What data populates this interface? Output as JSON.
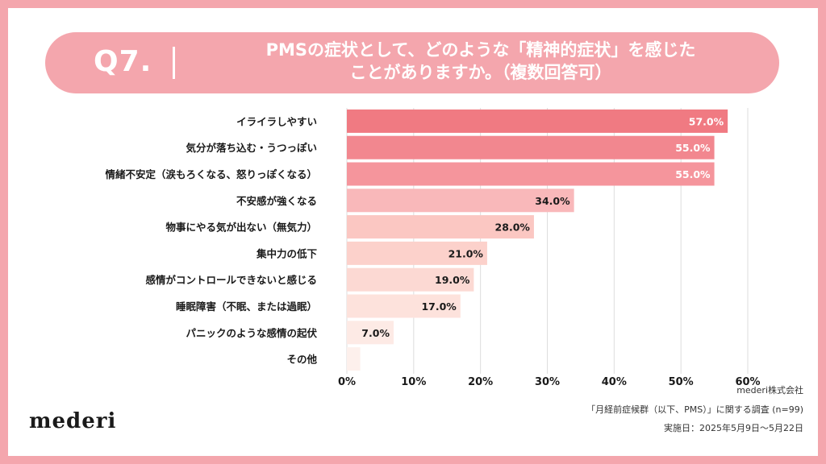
{
  "header": {
    "question_no": "Q7.",
    "question_line1": "PMSの症状として、どのような「精神的症状」を感じた",
    "question_line2": "ことがありますか。（複数回答可）"
  },
  "chart_data": {
    "type": "bar",
    "orientation": "horizontal",
    "categories": [
      "イライラしやすい",
      "気分が落ち込む・うつっぽい",
      "情緒不安定（涙もろくなる、怒りっぽくなる）",
      "不安感が強くなる",
      "物事にやる気が出ない（無気力）",
      "集中力の低下",
      "感情がコントロールできないと感じる",
      "睡眠障害（不眠、または過眠）",
      "パニックのような感情の起伏",
      "その他"
    ],
    "values": [
      57.0,
      55.0,
      55.0,
      34.0,
      28.0,
      21.0,
      19.0,
      17.0,
      7.0,
      2.0
    ],
    "value_labels": [
      "57.0%",
      "55.0%",
      "55.0%",
      "34.0%",
      "28.0%",
      "21.0%",
      "19.0%",
      "17.0%",
      "7.0%",
      ""
    ],
    "bar_colors": [
      "#f07a82",
      "#f2878f",
      "#f5959c",
      "#f9b8ba",
      "#fbc7c2",
      "#fcd1cb",
      "#fcd9d3",
      "#fde2dc",
      "#fdeae5",
      "#fdf0ec"
    ],
    "xlim": [
      0,
      60
    ],
    "xticks": [
      0,
      10,
      20,
      30,
      40,
      50,
      60
    ],
    "xtick_labels": [
      "0%",
      "10%",
      "20%",
      "30%",
      "40%",
      "50%",
      "60%"
    ],
    "grid": true
  },
  "footer": {
    "company": "mederi株式会社",
    "survey": "「月経前症候群（以下、PMS）」に関する調査 (n=99)",
    "date": "実施日：2025年5月9日〜5月22日",
    "brand": "mederi"
  },
  "colors": {
    "frame": "#f4a6ad",
    "grid": "#dddddd",
    "label_text": "#1a1a1a"
  }
}
